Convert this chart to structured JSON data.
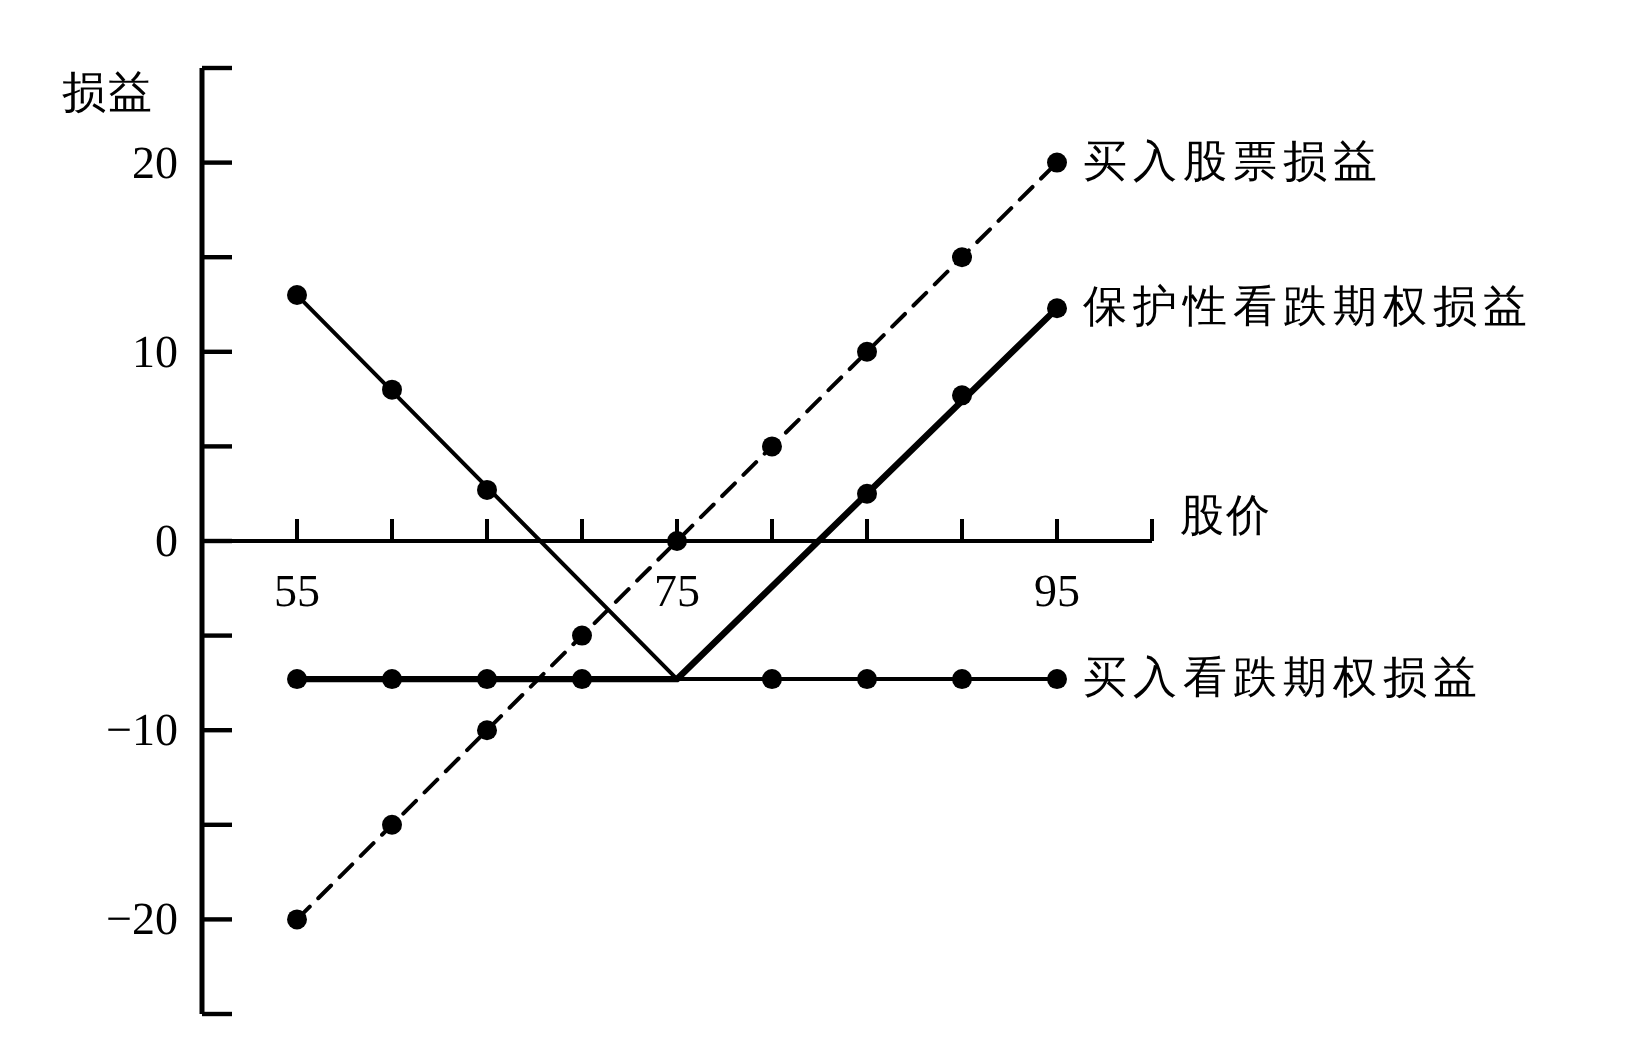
{
  "chart_data": {
    "type": "line",
    "xlabel": "股价",
    "ylabel": "损益",
    "xlim": [
      50,
      100
    ],
    "ylim": [
      -25,
      25
    ],
    "xticks": [
      {
        "value": 55,
        "label": "55"
      },
      {
        "value": 60,
        "label": null
      },
      {
        "value": 65,
        "label": null
      },
      {
        "value": 70,
        "label": null
      },
      {
        "value": 75,
        "label": "75"
      },
      {
        "value": 80,
        "label": null
      },
      {
        "value": 85,
        "label": null
      },
      {
        "value": 90,
        "label": null
      },
      {
        "value": 95,
        "label": "95"
      },
      {
        "value": 100,
        "label": null
      }
    ],
    "yticks": [
      {
        "value": -25,
        "label": null
      },
      -20,
      {
        "value": -15,
        "label": null
      },
      -10,
      {
        "value": -5,
        "label": null
      },
      0,
      {
        "value": 5,
        "label": null
      },
      10,
      {
        "value": 15,
        "label": null
      },
      20,
      {
        "value": 25,
        "label": null
      }
    ],
    "marker": "circle",
    "series": [
      {
        "name": "买入股票损益",
        "color": "#000000",
        "line_style": "dashed",
        "x": [
          55,
          60,
          65,
          70,
          75,
          80,
          85,
          90,
          95
        ],
        "values": [
          -20,
          -15,
          -10,
          -5,
          0,
          5,
          10,
          15,
          20
        ]
      },
      {
        "name": "保护性看跌期权损益",
        "color": "#000000",
        "line_style": "solid",
        "marker": "none",
        "x": [
          55,
          75,
          95
        ],
        "values": [
          -7.3,
          -7.3,
          12.3
        ]
      },
      {
        "type": "scatter",
        "color": "#000000",
        "x": [
          55,
          60,
          65,
          70,
          85,
          90,
          95
        ],
        "values": [
          -7.3,
          -7.3,
          -7.3,
          -7.3,
          2.5,
          7.7,
          12.3
        ]
      },
      {
        "name": "买入看跌期权损益",
        "color": "#000000",
        "line_style": "solid",
        "marker": "none",
        "x": [
          55,
          75,
          95
        ],
        "values": [
          13,
          -7.3,
          -7.3
        ]
      },
      {
        "type": "scatter",
        "color": "#000000",
        "x": [
          55,
          60,
          65,
          80,
          85,
          90,
          95
        ],
        "values": [
          13,
          8,
          2.7,
          -7.3,
          -7.3,
          -7.3,
          -7.3
        ]
      }
    ]
  }
}
